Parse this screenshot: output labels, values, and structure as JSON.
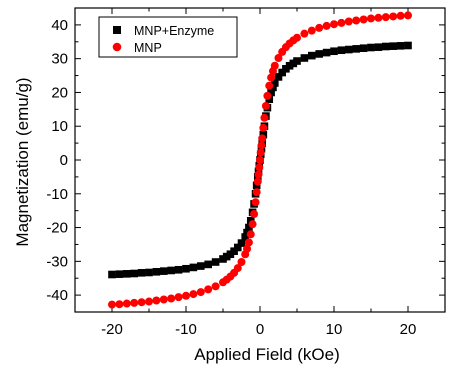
{
  "chart_data": {
    "type": "scatter",
    "title": "",
    "xlabel": "Applied Field (kOe)",
    "ylabel": "Magnetization (emu/g)",
    "xlim": [
      -25,
      25
    ],
    "ylim": [
      -45,
      45
    ],
    "xticks": [
      -20,
      -10,
      0,
      10,
      20
    ],
    "yticks": [
      -40,
      -30,
      -20,
      -10,
      0,
      10,
      20,
      30,
      40
    ],
    "legend_position": "top-left",
    "series": [
      {
        "name": "MNP+Enzyme",
        "color": "#000000",
        "marker": "square",
        "x": [
          -20,
          -19,
          -18,
          -17,
          -16,
          -15,
          -14,
          -13,
          -12,
          -11,
          -10,
          -9,
          -8,
          -7,
          -6,
          -5,
          -4.5,
          -4,
          -3.5,
          -3,
          -2.5,
          -2,
          -1.75,
          -1.5,
          -1.25,
          -1,
          -0.8,
          -0.6,
          -0.45,
          -0.3,
          -0.2,
          -0.1,
          0,
          0.1,
          0.2,
          0.3,
          0.45,
          0.6,
          0.8,
          1,
          1.25,
          1.5,
          1.75,
          2,
          2.5,
          3,
          3.5,
          4,
          4.5,
          5,
          6,
          7,
          8,
          9,
          10,
          11,
          12,
          13,
          14,
          15,
          16,
          17,
          18,
          19,
          20
        ],
        "y": [
          -33.9,
          -33.8,
          -33.7,
          -33.6,
          -33.4,
          -33.3,
          -33.1,
          -32.9,
          -32.7,
          -32.5,
          -32.2,
          -31.8,
          -31.4,
          -30.9,
          -30.2,
          -29.3,
          -28.6,
          -27.9,
          -27.0,
          -25.9,
          -24.6,
          -22.8,
          -21.5,
          -20.0,
          -18.0,
          -15.5,
          -13.0,
          -10.0,
          -7.5,
          -5.0,
          -3.4,
          -1.7,
          0.0,
          1.7,
          3.4,
          5.0,
          7.5,
          10.0,
          13.0,
          15.5,
          18.0,
          20.0,
          21.5,
          22.8,
          24.6,
          25.9,
          27.0,
          27.9,
          28.6,
          29.3,
          30.2,
          30.9,
          31.4,
          31.8,
          32.2,
          32.5,
          32.7,
          32.9,
          33.1,
          33.3,
          33.4,
          33.6,
          33.7,
          33.8,
          33.9
        ]
      },
      {
        "name": "MNP",
        "color": "#ff0000",
        "marker": "circle",
        "x": [
          -20,
          -19,
          -18,
          -17,
          -16,
          -15,
          -14,
          -13,
          -12,
          -11,
          -10,
          -9,
          -8,
          -7,
          -6,
          -5,
          -4.5,
          -4,
          -3.5,
          -3,
          -2.5,
          -2,
          -1.75,
          -1.5,
          -1.25,
          -1,
          -0.8,
          -0.6,
          -0.45,
          -0.3,
          -0.2,
          -0.1,
          0,
          0.1,
          0.2,
          0.3,
          0.45,
          0.6,
          0.8,
          1,
          1.25,
          1.5,
          1.75,
          2,
          2.5,
          3,
          3.5,
          4,
          4.5,
          5,
          6,
          7,
          8,
          9,
          10,
          11,
          12,
          13,
          14,
          15,
          16,
          17,
          18,
          19,
          20
        ],
        "y": [
          -42.8,
          -42.7,
          -42.5,
          -42.3,
          -42.1,
          -41.9,
          -41.6,
          -41.3,
          -41.0,
          -40.6,
          -40.2,
          -39.7,
          -39.1,
          -38.3,
          -37.4,
          -36.2,
          -35.4,
          -34.5,
          -33.4,
          -32.0,
          -30.2,
          -27.9,
          -26.3,
          -24.4,
          -22.0,
          -19.0,
          -16.0,
          -12.5,
          -9.5,
          -6.4,
          -4.3,
          -2.2,
          0.0,
          2.2,
          4.3,
          6.4,
          9.5,
          12.5,
          16.0,
          19.0,
          22.0,
          24.4,
          26.3,
          27.9,
          30.2,
          32.0,
          33.4,
          34.5,
          35.4,
          36.2,
          37.4,
          38.3,
          39.1,
          39.7,
          40.2,
          40.6,
          41.0,
          41.3,
          41.6,
          41.9,
          42.1,
          42.3,
          42.5,
          42.7,
          42.8
        ]
      }
    ]
  }
}
